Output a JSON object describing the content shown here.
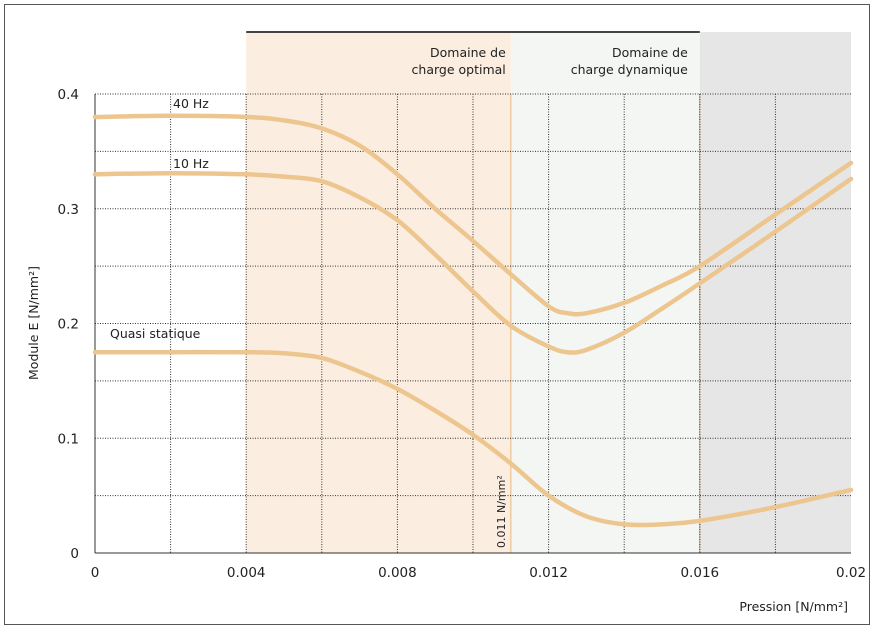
{
  "chart_data": {
    "type": "line",
    "title": "",
    "xlabel": "Pression [N/mm²]",
    "ylabel": "Module E [N/mm²]",
    "xlim": [
      0,
      0.02
    ],
    "ylim": [
      0,
      0.4
    ],
    "xticks": [
      0,
      0.004,
      0.008,
      0.012,
      0.016,
      0.02
    ],
    "xtick_labels": [
      "0",
      "0.004",
      "0.008",
      "0.012",
      "0.016",
      "0.02"
    ],
    "yticks": [
      0,
      0.1,
      0.2,
      0.3,
      0.4
    ],
    "ytick_labels": [
      "0",
      "0.1",
      "0.2",
      "0.3",
      "0.4"
    ],
    "grid": true,
    "legend": "none",
    "regions": [
      {
        "label_line1": "Domaine de",
        "label_line2": "charge optimal",
        "x_start": 0.004,
        "x_end": 0.011,
        "color": "#fbeee0"
      },
      {
        "label_line1": "Domaine de",
        "label_line2": "charge dynamique",
        "x_start": 0.011,
        "x_end": 0.016,
        "color": "#f4f6f4"
      },
      {
        "label_line1": "",
        "label_line2": "",
        "x_start": 0.016,
        "x_end": 0.02,
        "color": "#e6e6e6"
      }
    ],
    "annotation": {
      "text": "0.011 N/mm²",
      "x": 0.011
    },
    "series": [
      {
        "name": "40 Hz",
        "color": "#edc68f",
        "x": [
          0,
          0.002,
          0.004,
          0.005,
          0.006,
          0.007,
          0.008,
          0.009,
          0.01,
          0.011,
          0.012,
          0.0125,
          0.013,
          0.014,
          0.015,
          0.016,
          0.018,
          0.02
        ],
        "values": [
          0.38,
          0.381,
          0.38,
          0.377,
          0.37,
          0.355,
          0.33,
          0.3,
          0.272,
          0.243,
          0.215,
          0.209,
          0.209,
          0.218,
          0.233,
          0.25,
          0.295,
          0.34
        ]
      },
      {
        "name": "10 Hz",
        "color": "#edc68f",
        "x": [
          0,
          0.002,
          0.004,
          0.005,
          0.006,
          0.007,
          0.008,
          0.009,
          0.01,
          0.011,
          0.012,
          0.0125,
          0.013,
          0.014,
          0.015,
          0.016,
          0.018,
          0.02
        ],
        "values": [
          0.33,
          0.331,
          0.33,
          0.328,
          0.324,
          0.31,
          0.29,
          0.26,
          0.228,
          0.198,
          0.18,
          0.175,
          0.177,
          0.192,
          0.213,
          0.235,
          0.28,
          0.326
        ]
      },
      {
        "name": "Quasi statique",
        "color": "#edc68f",
        "x": [
          0,
          0.002,
          0.004,
          0.005,
          0.006,
          0.007,
          0.008,
          0.009,
          0.01,
          0.011,
          0.012,
          0.013,
          0.014,
          0.015,
          0.016,
          0.018,
          0.02
        ],
        "values": [
          0.175,
          0.175,
          0.175,
          0.174,
          0.17,
          0.158,
          0.143,
          0.124,
          0.103,
          0.078,
          0.05,
          0.032,
          0.025,
          0.025,
          0.028,
          0.04,
          0.055
        ]
      }
    ]
  }
}
